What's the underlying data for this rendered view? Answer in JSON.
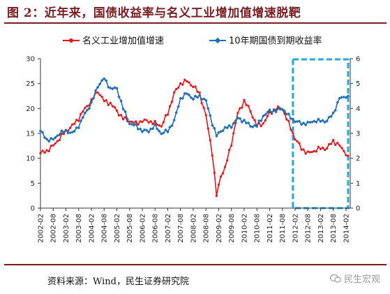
{
  "header": {
    "title": "图 2：近年来，国债收益率与名义工业增加值增速脱靶"
  },
  "footer": {
    "source": "资料来源：Wind，民生证券研究院",
    "watermark": "民生宏观"
  },
  "colors": {
    "accent": "#7b1d20",
    "series_red": "#e8141a",
    "series_blue": "#1f6fb5",
    "highlight_box": "#22a7e0"
  },
  "chart_data": {
    "type": "line",
    "legend_position": "top",
    "grid": false,
    "y_left": {
      "lim": [
        0,
        30
      ],
      "ticks": [
        "0",
        "5",
        "10",
        "15",
        "20",
        "25",
        "30"
      ]
    },
    "y_right": {
      "lim": [
        0,
        6
      ],
      "ticks": [
        "0",
        "1",
        "2",
        "3",
        "4",
        "5",
        "6"
      ]
    },
    "x_ticks": [
      "2002-02",
      "2002-08",
      "2003-02",
      "2003-08",
      "2004-02",
      "2004-08",
      "2005-02",
      "2005-08",
      "2006-02",
      "2006-08",
      "2007-02",
      "2007-08",
      "2008-02",
      "2008-08",
      "2009-02",
      "2009-08",
      "2010-02",
      "2010-08",
      "2011-02",
      "2011-08",
      "2012-02",
      "2012-08",
      "2013-02",
      "2013-08",
      "2014-02"
    ],
    "highlight": {
      "from": "2012-01",
      "to": "2014-03"
    },
    "series": [
      {
        "name": "名义工业增加值增速",
        "axis": "left",
        "points": [
          [
            "2002-02",
            11
          ],
          [
            "2002-05",
            11.5
          ],
          [
            "2002-08",
            12.5
          ],
          [
            "2002-11",
            14
          ],
          [
            "2003-02",
            15.5
          ],
          [
            "2003-05",
            16.5
          ],
          [
            "2003-08",
            18
          ],
          [
            "2003-11",
            20
          ],
          [
            "2004-02",
            21.5
          ],
          [
            "2004-05",
            23.5
          ],
          [
            "2004-08",
            21.5
          ],
          [
            "2004-11",
            21
          ],
          [
            "2005-02",
            19.5
          ],
          [
            "2005-05",
            18
          ],
          [
            "2005-08",
            17.5
          ],
          [
            "2005-11",
            17
          ],
          [
            "2006-02",
            17.5
          ],
          [
            "2006-05",
            17.5
          ],
          [
            "2006-08",
            17
          ],
          [
            "2006-11",
            16.5
          ],
          [
            "2007-02",
            19
          ],
          [
            "2007-05",
            23
          ],
          [
            "2007-08",
            25
          ],
          [
            "2007-11",
            25.5
          ],
          [
            "2008-02",
            24.5
          ],
          [
            "2008-05",
            23
          ],
          [
            "2008-08",
            18.5
          ],
          [
            "2008-11",
            11
          ],
          [
            "2009-01",
            2.5
          ],
          [
            "2009-03",
            6.5
          ],
          [
            "2009-05",
            8
          ],
          [
            "2009-08",
            13
          ],
          [
            "2009-11",
            19
          ],
          [
            "2010-02",
            21.5
          ],
          [
            "2010-05",
            19.5
          ],
          [
            "2010-08",
            16.5
          ],
          [
            "2010-11",
            17
          ],
          [
            "2011-02",
            19
          ],
          [
            "2011-05",
            20
          ],
          [
            "2011-08",
            20
          ],
          [
            "2011-11",
            17
          ],
          [
            "2012-02",
            14
          ],
          [
            "2012-05",
            12
          ],
          [
            "2012-08",
            11
          ],
          [
            "2012-11",
            11.5
          ],
          [
            "2013-02",
            12
          ],
          [
            "2013-05",
            12
          ],
          [
            "2013-08",
            13.5
          ],
          [
            "2013-11",
            12.5
          ],
          [
            "2014-02",
            11
          ],
          [
            "2014-03",
            10.5
          ]
        ]
      },
      {
        "name": "10年期国债到期收益率",
        "axis": "right",
        "points": [
          [
            "2002-02",
            3.1
          ],
          [
            "2002-05",
            2.75
          ],
          [
            "2002-08",
            2.75
          ],
          [
            "2002-11",
            3
          ],
          [
            "2003-02",
            3.1
          ],
          [
            "2003-05",
            3.0
          ],
          [
            "2003-08",
            3.3
          ],
          [
            "2003-11",
            3.8
          ],
          [
            "2004-02",
            4.2
          ],
          [
            "2004-05",
            4.9
          ],
          [
            "2004-08",
            5.2
          ],
          [
            "2004-11",
            4.8
          ],
          [
            "2005-02",
            4.8
          ],
          [
            "2005-05",
            4.0
          ],
          [
            "2005-08",
            3.4
          ],
          [
            "2005-11",
            3.3
          ],
          [
            "2006-02",
            3.1
          ],
          [
            "2006-05",
            3.1
          ],
          [
            "2006-08",
            3.3
          ],
          [
            "2006-11",
            3.0
          ],
          [
            "2007-02",
            3.1
          ],
          [
            "2007-05",
            3.5
          ],
          [
            "2007-08",
            4.4
          ],
          [
            "2007-11",
            4.6
          ],
          [
            "2008-02",
            4.4
          ],
          [
            "2008-05",
            4.5
          ],
          [
            "2008-08",
            4.3
          ],
          [
            "2008-11",
            3.4
          ],
          [
            "2009-01",
            2.9
          ],
          [
            "2009-03",
            3.1
          ],
          [
            "2009-05",
            3.2
          ],
          [
            "2009-08",
            3.3
          ],
          [
            "2009-11",
            3.6
          ],
          [
            "2010-02",
            3.5
          ],
          [
            "2010-05",
            3.3
          ],
          [
            "2010-08",
            3.3
          ],
          [
            "2010-11",
            3.7
          ],
          [
            "2011-02",
            3.9
          ],
          [
            "2011-05",
            3.9
          ],
          [
            "2011-08",
            4.0
          ],
          [
            "2011-11",
            3.7
          ],
          [
            "2012-02",
            3.5
          ],
          [
            "2012-05",
            3.4
          ],
          [
            "2012-08",
            3.4
          ],
          [
            "2012-11",
            3.5
          ],
          [
            "2013-02",
            3.5
          ],
          [
            "2013-05",
            3.5
          ],
          [
            "2013-08",
            3.8
          ],
          [
            "2013-11",
            4.4
          ],
          [
            "2014-02",
            4.5
          ],
          [
            "2014-03",
            4.5
          ]
        ]
      }
    ]
  }
}
